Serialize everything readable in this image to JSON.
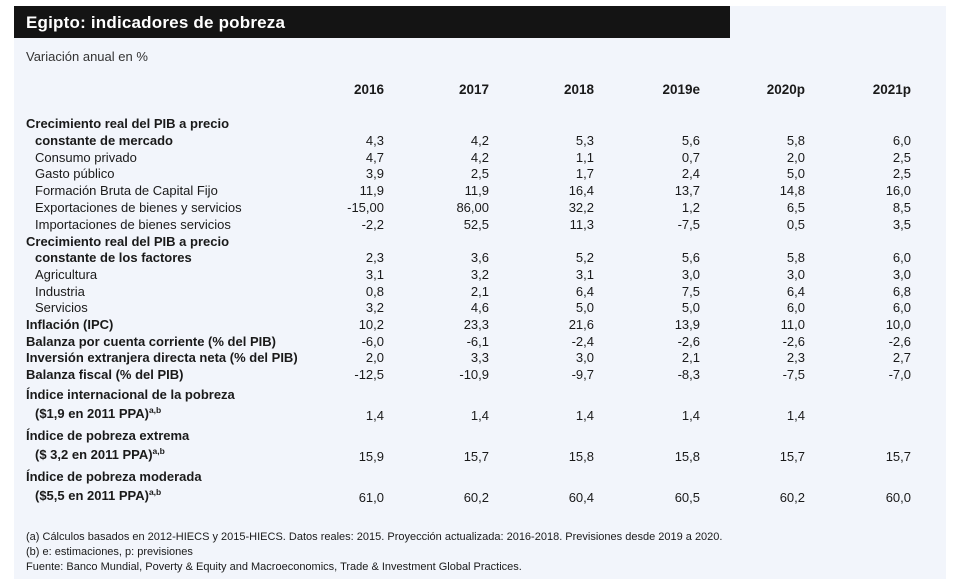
{
  "title": "Egipto: indicadores de pobreza",
  "subtitle": "Variación anual en %",
  "years": [
    "2016",
    "2017",
    "2018",
    "2019e",
    "2020p",
    "2021p"
  ],
  "rows": [
    {
      "label": "Crecimiento real del PIB a precio",
      "bold": true,
      "indent": false,
      "values": [
        "",
        "",
        "",
        "",
        "",
        ""
      ]
    },
    {
      "label": "constante de mercado",
      "bold": true,
      "indent": true,
      "values": [
        "4,3",
        "4,2",
        "5,3",
        "5,6",
        "5,8",
        "6,0"
      ]
    },
    {
      "label": "Consumo privado",
      "bold": false,
      "indent": true,
      "values": [
        "4,7",
        "4,2",
        "1,1",
        "0,7",
        "2,0",
        "2,5"
      ]
    },
    {
      "label": "Gasto público",
      "bold": false,
      "indent": true,
      "values": [
        "3,9",
        "2,5",
        "1,7",
        "2,4",
        "5,0",
        "2,5"
      ]
    },
    {
      "label": "Formación Bruta de Capital Fijo",
      "bold": false,
      "indent": true,
      "values": [
        "11,9",
        "11,9",
        "16,4",
        "13,7",
        "14,8",
        "16,0"
      ]
    },
    {
      "label": "Exportaciones de bienes y servicios",
      "bold": false,
      "indent": true,
      "values": [
        "-15,00",
        "86,00",
        "32,2",
        "1,2",
        "6,5",
        "8,5"
      ]
    },
    {
      "label": "Importaciones de bienes  servicios",
      "bold": false,
      "indent": true,
      "values": [
        "-2,2",
        "52,5",
        "11,3",
        "-7,5",
        "0,5",
        "3,5"
      ]
    },
    {
      "label": "Crecimiento real del PIB a precio",
      "bold": true,
      "indent": false,
      "values": [
        "",
        "",
        "",
        "",
        "",
        ""
      ]
    },
    {
      "label": "constante de los factores",
      "bold": true,
      "indent": true,
      "values": [
        "2,3",
        "3,6",
        "5,2",
        "5,6",
        "5,8",
        "6,0"
      ]
    },
    {
      "label": "Agricultura",
      "bold": false,
      "indent": true,
      "values": [
        "3,1",
        "3,2",
        "3,1",
        "3,0",
        "3,0",
        "3,0"
      ]
    },
    {
      "label": "Industria",
      "bold": false,
      "indent": true,
      "values": [
        "0,8",
        "2,1",
        "6,4",
        "7,5",
        "6,4",
        "6,8"
      ]
    },
    {
      "label": "Servicios",
      "bold": false,
      "indent": true,
      "values": [
        "3,2",
        "4,6",
        "5,0",
        "5,0",
        "6,0",
        "6,0"
      ]
    },
    {
      "label": "Inflación (IPC)",
      "bold": true,
      "indent": false,
      "values": [
        "10,2",
        "23,3",
        "21,6",
        "13,9",
        "11,0",
        "10,0"
      ]
    },
    {
      "label": "Balanza por cuenta corriente (% del PIB)",
      "bold": true,
      "indent": false,
      "values": [
        "-6,0",
        "-6,1",
        "-2,4",
        "-2,6",
        "-2,6",
        "-2,6"
      ]
    },
    {
      "label": "Inversión extranjera directa neta (% del PIB)",
      "bold": true,
      "indent": false,
      "values": [
        "2,0",
        "3,3",
        "3,0",
        "2,1",
        "2,3",
        "2,7"
      ]
    },
    {
      "label": "Balanza fiscal (% del PIB)",
      "bold": true,
      "indent": false,
      "values": [
        "-12,5",
        "-10,9",
        "-9,7",
        "-8,3",
        "-7,5",
        "-7,0"
      ]
    },
    {
      "label": "Índice internacional de la pobreza",
      "bold": true,
      "indent": false,
      "values": [
        "",
        "",
        "",
        "",
        "",
        ""
      ]
    },
    {
      "label": "($1,9 en 2011 PPA)",
      "sup": "a,b",
      "bold": true,
      "indent": true,
      "values": [
        "1,4",
        "1,4",
        "1,4",
        "1,4",
        "1,4",
        ""
      ]
    },
    {
      "label": "Índice de pobreza extrema",
      "bold": true,
      "indent": false,
      "values": [
        "",
        "",
        "",
        "",
        "",
        ""
      ]
    },
    {
      "label": "($ 3,2 en 2011 PPA)",
      "sup": "a,b",
      "bold": true,
      "indent": true,
      "values": [
        "15,9",
        "15,7",
        "15,8",
        "15,8",
        "15,7",
        "15,7"
      ]
    },
    {
      "label": "Índice de pobreza moderada",
      "bold": true,
      "indent": false,
      "values": [
        "",
        "",
        "",
        "",
        "",
        ""
      ]
    },
    {
      "label": "($5,5 en 2011 PPA)",
      "sup": "a,b",
      "bold": true,
      "indent": true,
      "values": [
        "61,0",
        "60,2",
        "60,4",
        "60,5",
        "60,2",
        "60,0"
      ]
    }
  ],
  "notes": [
    "(a) Cálculos basados en 2012-HIECS y 2015-HIECS. Datos reales: 2015. Proyección actualizada: 2016-2018. Previsiones desde 2019 a 2020.",
    "(b) e: estimaciones, p: previsiones",
    "Fuente: Banco Mundial, Poverty & Equity and Macroeconomics, Trade & Investment Global Practices."
  ]
}
